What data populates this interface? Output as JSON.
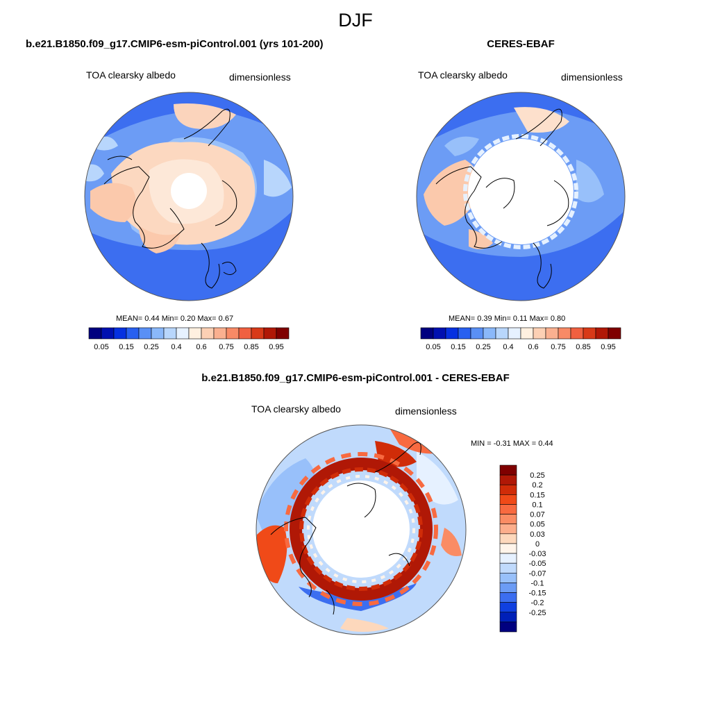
{
  "page": {
    "main_title": "DJF"
  },
  "chart_data": [
    {
      "type": "heatmap",
      "projection": "north-polar-stereographic",
      "title": "b.e21.B1850.f09_g17.CMIP6-esm-piControl.001 (yrs 101-200)",
      "left_label": "TOA clearsky albedo",
      "right_label": "dimensionless",
      "stats": {
        "mean": "0.44",
        "min": "0.20",
        "max": "0.67",
        "text": "MEAN=   0.44   Min=   0.20   Max=   0.67"
      },
      "colorbar": {
        "orientation": "horizontal",
        "tick_labels": [
          "0.05",
          "0.15",
          "0.25",
          "0.4",
          "0.6",
          "0.75",
          "0.85",
          "0.95"
        ],
        "colors": [
          "#00007f",
          "#0010b0",
          "#0530e0",
          "#2860f0",
          "#5a90f5",
          "#8ab8fa",
          "#b8d6fc",
          "#e6f1ff",
          "#fff0e0",
          "#fcd0b4",
          "#fab090",
          "#f88a66",
          "#f06040",
          "#d83a18",
          "#b01806",
          "#7f0000"
        ]
      }
    },
    {
      "type": "heatmap",
      "projection": "north-polar-stereographic",
      "title": "CERES-EBAF",
      "left_label": "TOA clearsky albedo",
      "right_label": "dimensionless",
      "stats": {
        "mean": "0.39",
        "min": "0.11",
        "max": "0.80",
        "text": "MEAN=   0.39   Min=   0.11   Max=   0.80"
      },
      "colorbar": {
        "orientation": "horizontal",
        "tick_labels": [
          "0.05",
          "0.15",
          "0.25",
          "0.4",
          "0.6",
          "0.75",
          "0.85",
          "0.95"
        ],
        "colors": [
          "#00007f",
          "#0010b0",
          "#0530e0",
          "#2860f0",
          "#5a90f5",
          "#8ab8fa",
          "#b8d6fc",
          "#e6f1ff",
          "#fff0e0",
          "#fcd0b4",
          "#fab090",
          "#f88a66",
          "#f06040",
          "#d83a18",
          "#b01806",
          "#7f0000"
        ]
      }
    },
    {
      "type": "heatmap",
      "projection": "north-polar-stereographic",
      "title": "b.e21.B1850.f09_g17.CMIP6-esm-piControl.001 - CERES-EBAF",
      "left_label": "TOA clearsky albedo",
      "right_label": "dimensionless",
      "stats": {
        "min": "-0.31",
        "max": "0.44",
        "text": "MIN =  -0.31 MAX =   0.44"
      },
      "colorbar": {
        "orientation": "vertical",
        "tick_labels": [
          "0.25",
          "0.2",
          "0.15",
          "0.1",
          "0.07",
          "0.05",
          "0.03",
          "0",
          "-0.03",
          "-0.05",
          "-0.07",
          "-0.1",
          "-0.15",
          "-0.2",
          "-0.25"
        ],
        "colors": [
          "#7f0000",
          "#b01806",
          "#d02c08",
          "#f04a18",
          "#f86a40",
          "#fa8c64",
          "#fcae8c",
          "#fdd8bc",
          "#fff4ea",
          "#e6f1ff",
          "#c0dafc",
          "#98c0fa",
          "#6c9cf5",
          "#3c6ef0",
          "#1040e0",
          "#0020b8",
          "#00007f"
        ]
      }
    }
  ]
}
